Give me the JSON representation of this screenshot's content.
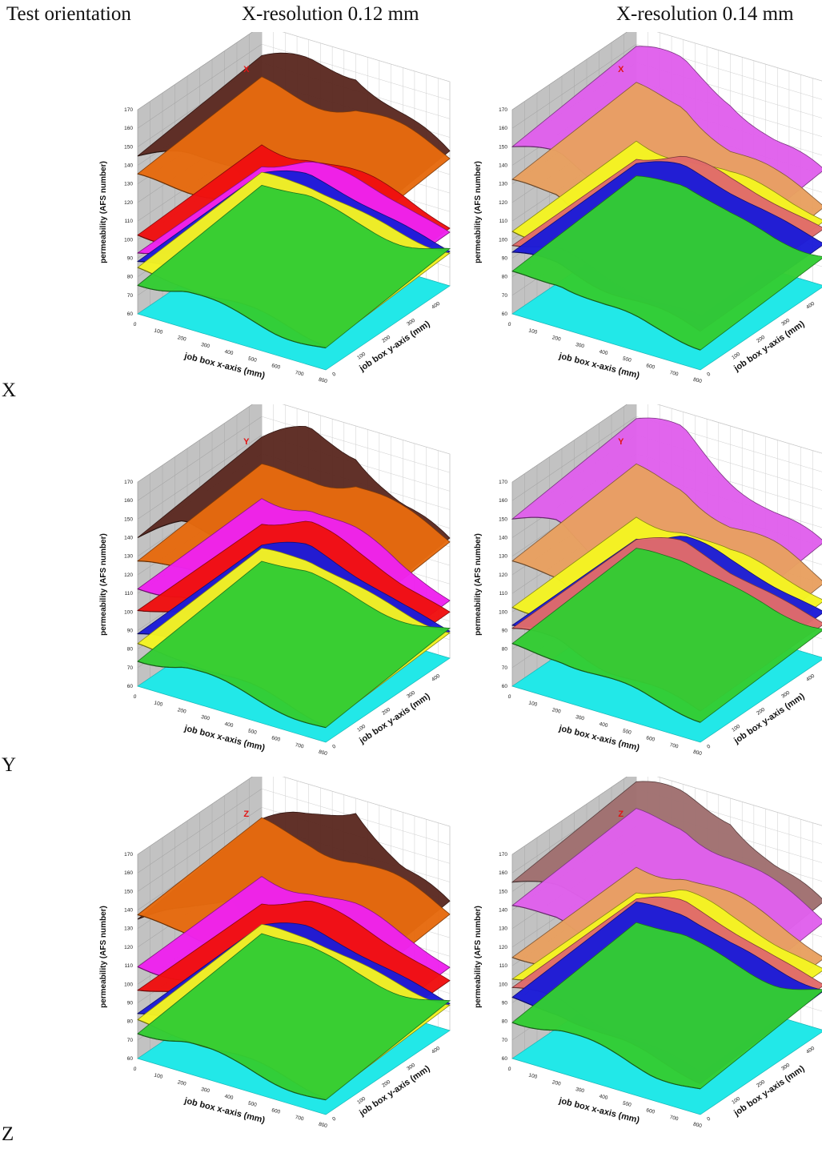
{
  "header": {
    "test_orientation": "Test orientation",
    "col1": "X-resolution  0.12 mm",
    "col2": "X-resolution  0.14 mm"
  },
  "rows": [
    "X",
    "Y",
    "Z"
  ],
  "axes": {
    "zlabel": "permeability (AFS number)",
    "xlabel": "job box x-axis (mm)",
    "ylabel": "job box y-axis (mm)",
    "z_ticks": [
      60,
      70,
      80,
      90,
      100,
      110,
      120,
      130,
      140,
      150,
      160,
      170
    ],
    "x_ticks": [
      0,
      100,
      200,
      300,
      400,
      500,
      600,
      700,
      800
    ],
    "y_ticks": [
      0,
      100,
      200,
      300,
      400,
      500
    ]
  },
  "colors": {
    "floor": "#22e8e8",
    "brown": "#5c2a22",
    "orange": "#e66a0e",
    "red": "#f01010",
    "magenta": "#ee22ee",
    "blue": "#1c1cd8",
    "yellow": "#f4f422",
    "green": "#33cc33",
    "violet": "#e060ec",
    "peach": "#e8a060",
    "salmon": "#e06a6a",
    "tan": "#a07070",
    "panel_label": "#e11515"
  },
  "chart_data": [
    {
      "type": "surface",
      "title": "X",
      "zlim": [
        60,
        170
      ],
      "xlim": [
        0,
        800
      ],
      "ylim": [
        0,
        500
      ],
      "series": [
        {
          "color": "brown",
          "values": [
            150,
            158,
            162,
            145,
            128
          ]
        },
        {
          "color": "orange",
          "values": [
            138,
            140,
            142,
            135,
            128
          ]
        },
        {
          "color": "red",
          "values": [
            108,
            110,
            104,
            99,
            92
          ]
        },
        {
          "color": "magenta",
          "values": [
            100,
            103,
            100,
            96,
            90
          ]
        },
        {
          "color": "blue",
          "values": [
            92,
            94,
            90,
            86,
            82
          ]
        },
        {
          "color": "yellow",
          "values": [
            88,
            89,
            86,
            83,
            80
          ]
        },
        {
          "color": "green",
          "values": [
            82,
            85,
            81,
            78,
            76
          ]
        }
      ]
    },
    {
      "type": "surface",
      "title": "X",
      "zlim": [
        60,
        170
      ],
      "xlim": [
        0,
        800
      ],
      "ylim": [
        0,
        500
      ],
      "series": [
        {
          "color": "violet",
          "values": [
            155,
            158,
            148,
            130,
            118
          ]
        },
        {
          "color": "peach",
          "values": [
            135,
            138,
            120,
            110,
            102
          ]
        },
        {
          "color": "yellow",
          "values": [
            110,
            110,
            103,
            100,
            96
          ]
        },
        {
          "color": "salmon",
          "values": [
            104,
            106,
            100,
            96,
            92
          ]
        },
        {
          "color": "blue",
          "values": [
            97,
            99,
            94,
            90,
            86
          ]
        },
        {
          "color": "green",
          "values": [
            86,
            90,
            84,
            80,
            78
          ]
        }
      ]
    },
    {
      "type": "surface",
      "title": "Y",
      "zlim": [
        60,
        170
      ],
      "xlim": [
        0,
        800
      ],
      "ylim": [
        0,
        500
      ],
      "series": [
        {
          "color": "brown",
          "values": [
            145,
            160,
            158,
            135,
            120
          ]
        },
        {
          "color": "orange",
          "values": [
            130,
            138,
            140,
            130,
            122
          ]
        },
        {
          "color": "magenta",
          "values": [
            118,
            122,
            112,
            100,
            92
          ]
        },
        {
          "color": "red",
          "values": [
            108,
            110,
            100,
            92,
            86
          ]
        },
        {
          "color": "blue",
          "values": [
            92,
            95,
            88,
            82,
            78
          ]
        },
        {
          "color": "yellow",
          "values": [
            86,
            88,
            84,
            80,
            76
          ]
        },
        {
          "color": "green",
          "values": [
            80,
            83,
            79,
            76,
            72
          ]
        }
      ]
    },
    {
      "type": "surface",
      "title": "Y",
      "zlim": [
        60,
        170
      ],
      "xlim": [
        0,
        800
      ],
      "ylim": [
        0,
        500
      ],
      "series": [
        {
          "color": "violet",
          "values": [
            155,
            160,
            145,
            130,
            118
          ]
        },
        {
          "color": "peach",
          "values": [
            130,
            132,
            118,
            110,
            100
          ]
        },
        {
          "color": "yellow",
          "values": [
            108,
            110,
            100,
            96,
            92
          ]
        },
        {
          "color": "blue",
          "values": [
            100,
            102,
            95,
            90,
            86
          ]
        },
        {
          "color": "salmon",
          "values": [
            95,
            97,
            90,
            86,
            82
          ]
        },
        {
          "color": "green",
          "values": [
            86,
            88,
            84,
            80,
            78
          ]
        }
      ]
    },
    {
      "type": "surface",
      "title": "Z",
      "zlim": [
        60,
        170
      ],
      "xlim": [
        0,
        800
      ],
      "ylim": [
        0,
        500
      ],
      "series": [
        {
          "color": "brown",
          "values": [
            140,
            152,
            168,
            140,
            125
          ]
        },
        {
          "color": "orange",
          "values": [
            140,
            142,
            138,
            130,
            122
          ]
        },
        {
          "color": "magenta",
          "values": [
            115,
            116,
            110,
            102,
            95
          ]
        },
        {
          "color": "red",
          "values": [
            104,
            106,
            100,
            94,
            88
          ]
        },
        {
          "color": "blue",
          "values": [
            88,
            90,
            86,
            82,
            78
          ]
        },
        {
          "color": "yellow",
          "values": [
            84,
            85,
            82,
            79,
            76
          ]
        },
        {
          "color": "green",
          "values": [
            80,
            82,
            78,
            75,
            72
          ]
        }
      ]
    },
    {
      "type": "surface",
      "title": "Z",
      "zlim": [
        60,
        170
      ],
      "xlim": [
        0,
        800
      ],
      "ylim": [
        0,
        500
      ],
      "series": [
        {
          "color": "tan",
          "values": [
            160,
            164,
            162,
            140,
            125
          ]
        },
        {
          "color": "violet",
          "values": [
            145,
            150,
            140,
            128,
            118
          ]
        },
        {
          "color": "peach",
          "values": [
            120,
            124,
            116,
            108,
            100
          ]
        },
        {
          "color": "yellow",
          "values": [
            110,
            112,
            104,
            98,
            94
          ]
        },
        {
          "color": "salmon",
          "values": [
            102,
            104,
            98,
            92,
            88
          ]
        },
        {
          "color": "blue",
          "values": [
            96,
            98,
            92,
            88,
            84
          ]
        },
        {
          "color": "green",
          "values": [
            86,
            88,
            84,
            80,
            78
          ]
        }
      ]
    }
  ]
}
